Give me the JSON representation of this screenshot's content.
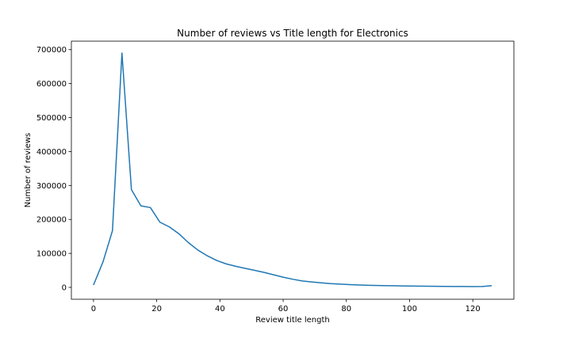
{
  "chart_data": {
    "type": "line",
    "title": "Number of reviews vs Title length for Electronics",
    "xlabel": "Review title length",
    "ylabel": "Number of reviews",
    "xlim": [
      -7,
      133
    ],
    "ylim": [
      -35000,
      725000
    ],
    "xticks": [
      0,
      20,
      40,
      60,
      80,
      100,
      120
    ],
    "yticks": [
      0,
      100000,
      200000,
      300000,
      400000,
      500000,
      600000,
      700000
    ],
    "grid": false,
    "line_color": "#1f77b4",
    "series": [
      {
        "x": [
          0,
          3,
          6,
          9,
          12,
          15,
          18,
          21,
          24,
          27,
          30,
          33,
          36,
          39,
          42,
          45,
          48,
          51,
          54,
          57,
          60,
          63,
          66,
          69,
          72,
          75,
          78,
          81,
          84,
          87,
          90,
          93,
          96,
          99,
          102,
          105,
          108,
          111,
          114,
          117,
          120,
          123,
          126
        ],
        "y": [
          7000,
          75000,
          167000,
          690000,
          288000,
          240000,
          235000,
          192000,
          178000,
          158000,
          132000,
          110000,
          93000,
          79000,
          69000,
          62000,
          56000,
          50000,
          44000,
          37000,
          30000,
          24000,
          19000,
          16000,
          13500,
          11000,
          9500,
          8000,
          7000,
          6000,
          5500,
          5000,
          4500,
          4000,
          3700,
          3400,
          3100,
          2900,
          2700,
          2500,
          2400,
          2500,
          5000
        ]
      }
    ]
  }
}
